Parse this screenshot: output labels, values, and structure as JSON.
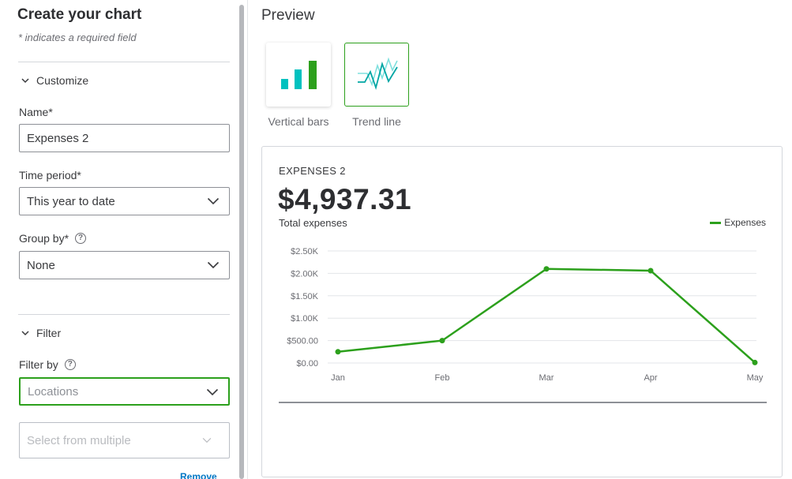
{
  "left": {
    "title": "Create your chart",
    "subtitle": "* indicates a required field",
    "customize_label": "Customize",
    "name_label": "Name*",
    "name_value": "Expenses 2",
    "time_period_label": "Time period*",
    "time_period_value": "This year to date",
    "group_by_label": "Group by*",
    "group_by_value": "None",
    "filter_label": "Filter",
    "filter_by_label": "Filter by",
    "filter_by_placeholder": "Locations",
    "select_multiple_placeholder": "Select from multiple",
    "remove_label": "Remove",
    "help_glyph": "?"
  },
  "right": {
    "preview_title": "Preview",
    "chart_types": [
      {
        "label": "Vertical bars",
        "icon": "vertical-bars-icon",
        "selected": false
      },
      {
        "label": "Trend line",
        "icon": "trend-line-icon",
        "selected": true
      }
    ],
    "card": {
      "title": "EXPENSES 2",
      "amount": "$4,937.31",
      "amount_label": "Total expenses",
      "legend": "Expenses"
    }
  },
  "colors": {
    "accent": "#2ca01c",
    "teal": "#00c1bf",
    "link": "#0077c5"
  },
  "chart_data": {
    "type": "line",
    "title": "",
    "categories": [
      "Jan",
      "Feb",
      "Mar",
      "Apr",
      "May"
    ],
    "series": [
      {
        "name": "Expenses",
        "values": [
          250,
          500,
          2100,
          2060,
          10
        ]
      }
    ],
    "y_ticks": [
      "$0.00",
      "$500.00",
      "$1.00K",
      "$1.50K",
      "$2.00K",
      "$2.50K"
    ],
    "ylim": [
      0,
      2500
    ],
    "grid": true,
    "legend": "top-right"
  }
}
